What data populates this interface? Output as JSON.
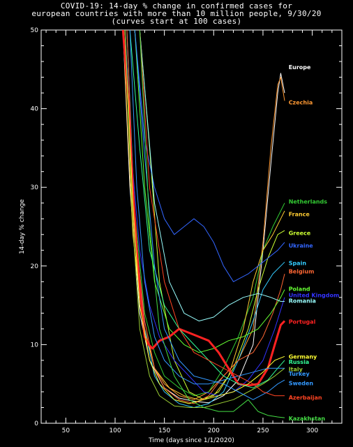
{
  "chart_data": {
    "type": "line",
    "title_lines": [
      "COVID-19: 14-day % change in confirmed cases for",
      "european countries with more than 10 million people, 9/30/20",
      "(curves start at 100 cases)"
    ],
    "xlabel": "Time (days since 1/1/2020)",
    "ylabel": "14-day % change",
    "xlim": [
      25,
      330
    ],
    "ylim": [
      0,
      50
    ],
    "xticks": [
      50,
      100,
      150,
      200,
      250,
      300
    ],
    "yticks": [
      0,
      10,
      20,
      30,
      40,
      50
    ],
    "series": [
      {
        "name": "Europe",
        "color": "#ffffff",
        "x": [
          108,
          115,
          125,
          135,
          150,
          165,
          180,
          195,
          210,
          225,
          240,
          250,
          258,
          265,
          268,
          272
        ],
        "y": [
          50,
          30,
          14,
          8,
          4.5,
          3.2,
          2.8,
          2.6,
          3.5,
          5.5,
          10,
          22,
          33,
          42,
          44.5,
          42
        ]
      },
      {
        "name": "Czechia",
        "color": "#ff9933",
        "x": [
          110,
          120,
          130,
          140,
          150,
          165,
          180,
          195,
          210,
          225,
          240,
          250,
          258,
          265,
          268,
          272
        ],
        "y": [
          50,
          22,
          12,
          7,
          5,
          3.5,
          3,
          4,
          6,
          8,
          12,
          23,
          35,
          43,
          44,
          41
        ]
      },
      {
        "name": "Netherlands",
        "color": "#33cc33",
        "x": [
          110,
          120,
          130,
          140,
          150,
          165,
          180,
          195,
          210,
          225,
          240,
          250,
          260,
          268,
          272
        ],
        "y": [
          50,
          27,
          14,
          9,
          6,
          4.5,
          3.5,
          4,
          7,
          11,
          16,
          22,
          25,
          27,
          28
        ]
      },
      {
        "name": "France",
        "color": "#ffcc33",
        "x": [
          108,
          118,
          128,
          140,
          155,
          170,
          185,
          200,
          215,
          230,
          240,
          250,
          260,
          268,
          272
        ],
        "y": [
          50,
          24,
          13,
          7,
          4.5,
          3.5,
          3,
          3.5,
          6,
          12,
          18,
          22,
          24,
          26,
          27
        ]
      },
      {
        "name": "Greece",
        "color": "#ccff33",
        "x": [
          125,
          135,
          145,
          160,
          175,
          190,
          205,
          220,
          235,
          245,
          255,
          265,
          272
        ],
        "y": [
          50,
          35,
          18,
          8,
          4,
          3,
          4,
          7,
          12,
          17,
          21,
          24,
          24.5
        ]
      },
      {
        "name": "Ukraine",
        "color": "#3366ff",
        "x": [
          120,
          130,
          140,
          150,
          160,
          170,
          180,
          190,
          200,
          210,
          220,
          235,
          250,
          265,
          272
        ],
        "y": [
          50,
          36,
          30,
          26,
          24,
          25,
          26,
          25,
          23,
          20,
          18,
          19,
          20.5,
          22,
          23
        ]
      },
      {
        "name": "Spain",
        "color": "#33ccff",
        "x": [
          112,
          120,
          130,
          140,
          150,
          165,
          180,
          195,
          210,
          225,
          240,
          250,
          260,
          268,
          272
        ],
        "y": [
          50,
          26,
          12,
          6,
          4,
          2.5,
          2,
          2.5,
          4,
          8,
          13,
          17,
          19,
          20,
          20.5
        ]
      },
      {
        "name": "Belgium",
        "color": "#ff6633",
        "x": [
          112,
          120,
          130,
          140,
          150,
          165,
          180,
          195,
          210,
          225,
          240,
          250,
          260,
          268,
          272
        ],
        "y": [
          50,
          25,
          13,
          7,
          4.5,
          3,
          2.5,
          3.5,
          6,
          8,
          9,
          11,
          14,
          17,
          19
        ]
      },
      {
        "name": "Poland",
        "color": "#66ff33",
        "x": [
          120,
          130,
          140,
          155,
          170,
          185,
          200,
          215,
          230,
          245,
          258,
          268,
          272
        ],
        "y": [
          50,
          30,
          18,
          12,
          10,
          9,
          9.5,
          10.5,
          11,
          12,
          14,
          16,
          17
        ]
      },
      {
        "name": "United Kingdom",
        "color": "#3333ff",
        "x": [
          110,
          118,
          125,
          135,
          145,
          160,
          175,
          190,
          205,
          220,
          235,
          250,
          262,
          272
        ],
        "y": [
          50,
          32,
          22,
          15,
          11,
          8,
          6,
          4,
          3.5,
          4,
          5.5,
          8,
          12,
          16
        ]
      },
      {
        "name": "Romania",
        "color": "#99ffff",
        "x": [
          125,
          140,
          155,
          170,
          185,
          200,
          215,
          230,
          245,
          258,
          268,
          272
        ],
        "y": [
          50,
          28,
          18,
          14,
          13,
          13.5,
          15,
          16,
          16.5,
          16,
          15.5,
          15.5
        ]
      },
      {
        "name": "Portugal",
        "color": "#ff2222",
        "x": [
          108,
          114,
          118,
          122,
          126,
          130,
          134,
          138,
          145,
          155,
          165,
          175,
          185,
          195,
          205,
          215,
          225,
          235,
          245,
          255,
          262,
          268,
          272
        ],
        "y": [
          50,
          40,
          30,
          22,
          16,
          11,
          10,
          9.5,
          10.5,
          11,
          12,
          11.5,
          11,
          10.5,
          9,
          7,
          5,
          4.8,
          5,
          7,
          10,
          12.5,
          13
        ]
      },
      {
        "name": "Germany",
        "color": "#ffff33",
        "x": [
          110,
          118,
          125,
          135,
          145,
          160,
          175,
          190,
          205,
          220,
          235,
          250,
          262,
          272
        ],
        "y": [
          50,
          28,
          15,
          8,
          5,
          3,
          2.5,
          3,
          3.5,
          4,
          5,
          6.5,
          8,
          8.5
        ]
      },
      {
        "name": "Russia",
        "color": "#33ff99",
        "x": [
          115,
          125,
          135,
          150,
          165,
          180,
          195,
          210,
          225,
          240,
          255,
          265,
          272
        ],
        "y": [
          50,
          35,
          22,
          15,
          12,
          10,
          8,
          6,
          5,
          4.5,
          5.5,
          7,
          8
        ]
      },
      {
        "name": "Italy",
        "color": "#99cc33",
        "x": [
          110,
          118,
          125,
          135,
          145,
          160,
          175,
          190,
          205,
          220,
          235,
          250,
          262,
          272
        ],
        "y": [
          50,
          25,
          12,
          6,
          3.5,
          2.2,
          2,
          2,
          2.5,
          3,
          4,
          5,
          6,
          7
        ]
      },
      {
        "name": "Turkey",
        "color": "#3399ff",
        "x": [
          115,
          122,
          130,
          140,
          150,
          165,
          180,
          195,
          210,
          225,
          240,
          255,
          265,
          272
        ],
        "y": [
          50,
          30,
          18,
          11,
          8,
          6,
          5,
          5,
          5.5,
          6,
          6.5,
          7,
          7,
          7
        ]
      },
      {
        "name": "Sweden",
        "color": "#3399ff",
        "x": [
          120,
          130,
          140,
          150,
          165,
          180,
          195,
          210,
          225,
          240,
          255,
          265,
          272
        ],
        "y": [
          50,
          34,
          20,
          12,
          8,
          6,
          5.5,
          5,
          4,
          3,
          4,
          5,
          5.5
        ]
      },
      {
        "name": "Azerbaijan",
        "color": "#ff4422",
        "x": [
          125,
          135,
          150,
          165,
          180,
          195,
          210,
          225,
          240,
          250,
          262,
          272
        ],
        "y": [
          50,
          30,
          18,
          12,
          9,
          8,
          7,
          6,
          5,
          4,
          3.5,
          3.5
        ]
      },
      {
        "name": "Kazakhstan",
        "color": "#44dd44",
        "x": [
          125,
          135,
          145,
          160,
          175,
          190,
          205,
          220,
          235,
          245,
          255,
          265,
          272
        ],
        "y": [
          50,
          25,
          12,
          6,
          3,
          2,
          1.5,
          1.5,
          3,
          1.5,
          1,
          0.8,
          0.7
        ]
      }
    ],
    "labels": [
      {
        "text": "Europe",
        "color": "#ffffff",
        "x": 276,
        "y": 45.3
      },
      {
        "text": "Czechia",
        "color": "#ff9933",
        "x": 276,
        "y": 40.8
      },
      {
        "text": "Netherlands",
        "color": "#33cc33",
        "x": 276,
        "y": 28.2
      },
      {
        "text": "France",
        "color": "#ffcc33",
        "x": 276,
        "y": 26.6
      },
      {
        "text": "Greece",
        "color": "#ccff33",
        "x": 276,
        "y": 24.2
      },
      {
        "text": "Ukraine",
        "color": "#3366ff",
        "x": 276,
        "y": 22.6
      },
      {
        "text": "Spain",
        "color": "#33ccff",
        "x": 276,
        "y": 20.4
      },
      {
        "text": "Belgium",
        "color": "#ff6633",
        "x": 276,
        "y": 19.3
      },
      {
        "text": "Poland",
        "color": "#66ff33",
        "x": 276,
        "y": 17.1
      },
      {
        "text": "United Kingdom",
        "color": "#3333ff",
        "x": 276,
        "y": 16.3
      },
      {
        "text": "Romania",
        "color": "#99ffff",
        "x": 276,
        "y": 15.6
      },
      {
        "text": "Portugal",
        "color": "#ff2222",
        "x": 276,
        "y": 12.9
      },
      {
        "text": "Germany",
        "color": "#ffff33",
        "x": 276,
        "y": 8.5
      },
      {
        "text": "Russia",
        "color": "#33ff99",
        "x": 276,
        "y": 7.8
      },
      {
        "text": "Italy",
        "color": "#99cc33",
        "x": 276,
        "y": 6.9
      },
      {
        "text": "Turkey",
        "color": "#3399ff",
        "x": 276,
        "y": 6.3
      },
      {
        "text": "Sweden",
        "color": "#3399ff",
        "x": 276,
        "y": 5.1
      },
      {
        "text": "Azerbaijan",
        "color": "#ff4422",
        "x": 276,
        "y": 3.3
      },
      {
        "text": "Kazakhstan",
        "color": "#44dd44",
        "x": 276,
        "y": 0.6
      }
    ],
    "grid": false,
    "legend": "inline labels at right end of curves"
  }
}
